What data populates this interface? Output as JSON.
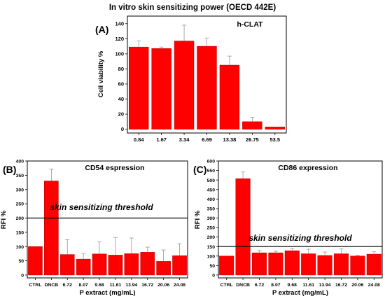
{
  "figure": {
    "title": "In vitro skin sensitizing power (OECD 442E)",
    "bar_color": "#ff0000",
    "bar_edge_color": "#b30000"
  },
  "chart_data": [
    {
      "type": "bar",
      "panel": "(A)",
      "label": "h-CLAT",
      "categories": [
        "0.84",
        "1.67",
        "3.34",
        "6.69",
        "13.38",
        "26.75",
        "53.5"
      ],
      "values": [
        109,
        107,
        117,
        110,
        85,
        10,
        3
      ],
      "errors": [
        8,
        2,
        21,
        11,
        12,
        6,
        0
      ],
      "xlabel": "",
      "ylabel": "Cell viability %",
      "ylim": [
        -5,
        150
      ],
      "yticks": [
        0,
        20,
        40,
        60,
        80,
        100,
        120,
        140
      ],
      "grid": false
    },
    {
      "type": "bar",
      "panel": "(B)",
      "label": "CD54 espression",
      "categories": [
        "CTRL",
        "DNCB",
        "6.72",
        "8.07",
        "9.68",
        "11.61",
        "13.94",
        "16.72",
        "20.06",
        "24.08"
      ],
      "values": [
        100,
        330,
        72,
        56,
        74,
        70,
        75,
        80,
        48,
        68
      ],
      "errors": [
        0,
        42,
        52,
        20,
        42,
        62,
        55,
        18,
        40,
        42
      ],
      "threshold": 200,
      "threshold_label": "skin sensitizing threshold",
      "xlabel": "P extract (mg/mL)",
      "ylabel": "RFI %",
      "ylim": [
        -10,
        400
      ],
      "yticks": [
        0,
        50,
        100,
        150,
        200,
        250,
        300,
        350,
        400
      ],
      "grid": false
    },
    {
      "type": "bar",
      "panel": "(C)",
      "label": "CD86 expression",
      "categories": [
        "CTRL",
        "DNCB",
        "6.72",
        "8.07",
        "9.68",
        "11.61",
        "13.94",
        "16.72",
        "20.06",
        "24.08"
      ],
      "values": [
        100,
        507,
        117,
        117,
        128,
        112,
        103,
        112,
        100,
        110
      ],
      "errors": [
        0,
        35,
        12,
        8,
        12,
        24,
        18,
        25,
        5,
        12
      ],
      "threshold": 150,
      "threshold_label": "skin sensitizing threshold",
      "xlabel": "P extract (mg/mL)",
      "ylabel": "RFI %",
      "ylim": [
        -15,
        600
      ],
      "yticks": [
        0,
        50,
        100,
        150,
        200,
        250,
        300,
        350,
        400,
        450,
        500,
        550,
        600
      ],
      "grid": false
    }
  ]
}
